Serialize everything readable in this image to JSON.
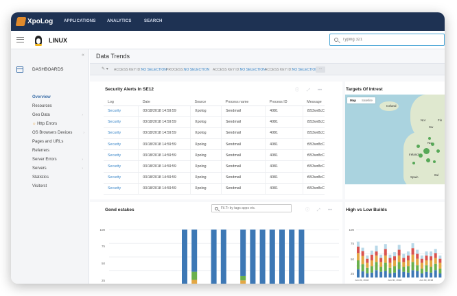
{
  "app": {
    "logo_text": "XpoLog",
    "nav": [
      "APPLICATIONS",
      "ANALYTICS",
      "SEARCH"
    ]
  },
  "subbar": {
    "title": "LINUX",
    "search_placeholder": "Typing 321"
  },
  "sidebar": {
    "section": "DASHBOARDS",
    "items": [
      "Overview",
      "Resources",
      "Geo Data",
      "Http Errors",
      "OS Browsers Devices",
      "Pages and URLs",
      "Referrers",
      "Server Errors",
      "Servers",
      "Statistics",
      "Visitorst"
    ],
    "active": "Overview",
    "warning_item": "Http Errors",
    "warning_icon": "warning-icon"
  },
  "main": {
    "title": "Data Trends",
    "filters": [
      {
        "label": "ACCESS KEY ID:",
        "value": "NO SELECTION"
      },
      {
        "label": "PROCESS:",
        "value": "NO SELECTION"
      },
      {
        "label": "ACCESS KEY ID:",
        "value": "NO SELECTION"
      },
      {
        "label": "ACCESS KEY ID:",
        "value": "NO SELECTION"
      }
    ],
    "filters_more": "..."
  },
  "alerts": {
    "title": "Security Alerts In SE12",
    "columns": [
      "Log",
      "Date",
      "Source",
      "Process name",
      "Process ID",
      "Message"
    ],
    "rows": [
      [
        "Security",
        "03/18/2018 14:59:59",
        "Xpolog",
        "Sendmail",
        "4081",
        "t553wr8cC"
      ],
      [
        "Security",
        "03/18/2018 14:59:59",
        "Xpolog",
        "Sendmail",
        "4081",
        "t553wr8cC"
      ],
      [
        "Security",
        "03/18/2018 14:59:59",
        "Xpolog",
        "Sendmail",
        "4081",
        "t553wr8cC"
      ],
      [
        "Security",
        "03/18/2018 14:59:59",
        "Xpolog",
        "Sendmail",
        "4081",
        "t553wr8cC"
      ],
      [
        "Security",
        "03/18/2018 14:59:59",
        "Xpolog",
        "Sendmail",
        "4081",
        "t553wr8cC"
      ],
      [
        "Security",
        "03/18/2018 14:59:59",
        "Xpolog",
        "Sendmail",
        "4081",
        "t553wr8cC"
      ],
      [
        "Security",
        "03/18/2018 14:59:59",
        "Xpolog",
        "Sendmail",
        "4081",
        "t553wr8cC"
      ],
      [
        "Security",
        "03/18/2018 14:59:59",
        "Xpolog",
        "Sendmail",
        "4081",
        "t553wr8cC"
      ]
    ]
  },
  "map": {
    "title": "Targets Of Intrest",
    "toggle": [
      "Map",
      "Satellite"
    ],
    "places": [
      "Iceland",
      "Ireland",
      "Spain",
      "Fin",
      "Sw",
      "Nor",
      "No",
      "Ital"
    ]
  },
  "bars": {
    "title": "Gond estakes",
    "search_placeholder": "Fil.Tr by tags apps etc.",
    "yticks": [
      "100",
      "75",
      "50",
      "25"
    ]
  },
  "builds": {
    "title": "High vs Low Builds",
    "yticks": [
      "100",
      "75",
      "50",
      "25"
    ],
    "xticks": [
      "Jun 26, 2018",
      "Jun 30, 2018",
      "Jun 30, 2018"
    ]
  },
  "colors": {
    "nav_bg": "#1e3253",
    "accent": "#3a86c8",
    "bar_blue": "#3d78b5",
    "bar_green": "#6ab04c",
    "bar_orange": "#e3a744"
  },
  "chart_data": [
    {
      "type": "bar",
      "title": "Gond estakes",
      "ylim": [
        0,
        100
      ],
      "yticks": [
        25,
        50,
        75,
        100
      ],
      "stacked": true,
      "series": [
        {
          "values": [
            100,
            78,
            0,
            100,
            100,
            0,
            86,
            100,
            100,
            100,
            100,
            100,
            100
          ]
        },
        {
          "values": [
            0,
            15,
            0,
            0,
            0,
            0,
            8,
            0,
            0,
            0,
            0,
            0,
            0
          ]
        },
        {
          "values": [
            0,
            7,
            0,
            0,
            0,
            0,
            6,
            0,
            0,
            0,
            0,
            0,
            0
          ]
        }
      ]
    },
    {
      "type": "bar",
      "title": "High vs Low Builds",
      "ylim": [
        0,
        100
      ],
      "yticks": [
        25,
        50,
        75,
        100
      ],
      "stacked": true,
      "xticks": [
        "Jun 26, 2018",
        "Jun 30, 2018",
        "Jun 30, 2018"
      ],
      "series": [
        {
          "values": [
            20,
            15,
            10,
            12,
            18,
            14,
            16,
            10,
            12,
            20,
            14,
            12,
            18,
            16,
            10,
            14,
            12,
            18,
            10
          ]
        },
        {
          "values": [
            22,
            18,
            14,
            16,
            20,
            12,
            20,
            14,
            16,
            18,
            12,
            16,
            20,
            14,
            12,
            16,
            14,
            16,
            12
          ]
        },
        {
          "values": [
            18,
            20,
            12,
            14,
            16,
            12,
            18,
            12,
            14,
            16,
            12,
            14,
            18,
            16,
            14,
            12,
            16,
            14,
            14
          ]
        },
        {
          "values": [
            16,
            12,
            10,
            14,
            10,
            10,
            16,
            12,
            10,
            14,
            10,
            12,
            16,
            12,
            10,
            12,
            10,
            12,
            10
          ]
        },
        {
          "values": [
            12,
            8,
            8,
            10,
            14,
            8,
            12,
            8,
            10,
            12,
            10,
            10,
            12,
            10,
            8,
            10,
            12,
            10,
            8
          ]
        }
      ]
    }
  ]
}
